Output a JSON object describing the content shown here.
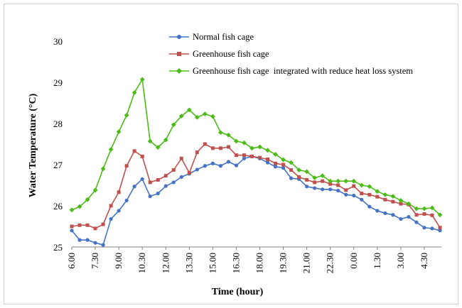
{
  "chart_data": {
    "type": "line",
    "title": "",
    "xlabel": "Time (hour)",
    "ylabel": "Water Temperature (°C)",
    "ylim": [
      25,
      30
    ],
    "yticks": [
      "25",
      "26",
      "27",
      "28",
      "29",
      "30"
    ],
    "x_tick_labels": [
      "6.00",
      "7.30",
      "9.00",
      "10.30",
      "12.00",
      "13.30",
      "15.00",
      "16.30",
      "18.00",
      "19.30",
      "21.00",
      "22.30",
      "0.00",
      "1.30",
      "3.00",
      "4.30"
    ],
    "x": [
      "6.00",
      "6.30",
      "7.00",
      "7.30",
      "8.00",
      "8.30",
      "9.00",
      "9.30",
      "10.00",
      "10.30",
      "11.00",
      "11.30",
      "12.00",
      "12.30",
      "13.00",
      "13.30",
      "14.00",
      "14.30",
      "15.00",
      "15.30",
      "16.00",
      "16.30",
      "17.00",
      "17.30",
      "18.00",
      "18.30",
      "19.00",
      "19.30",
      "20.00",
      "20.30",
      "21.00",
      "21.30",
      "22.00",
      "22.30",
      "23.00",
      "23.30",
      "0.00",
      "0.30",
      "1.00",
      "1.30",
      "2.00",
      "2.30",
      "3.00",
      "3.30",
      "4.00",
      "4.30",
      "5.00",
      "5.30"
    ],
    "legend_position": "top-center",
    "grid": false,
    "series": [
      {
        "name": "Normal fish cage",
        "color": "#4472C4",
        "marker": "circle",
        "values": [
          25.4,
          25.17,
          25.17,
          25.1,
          25.05,
          25.68,
          25.88,
          26.13,
          26.47,
          26.65,
          26.23,
          26.3,
          26.48,
          26.57,
          26.7,
          26.78,
          26.88,
          26.97,
          27.03,
          26.97,
          27.07,
          26.98,
          27.15,
          27.2,
          27.15,
          27.05,
          26.95,
          26.92,
          26.67,
          26.65,
          26.47,
          26.43,
          26.4,
          26.4,
          26.37,
          26.27,
          26.25,
          26.15,
          25.98,
          25.88,
          25.82,
          25.78,
          25.68,
          25.73,
          25.6,
          25.47,
          25.45,
          25.4
        ]
      },
      {
        "name": "Greenhouse fish cage",
        "color": "#C0504D",
        "marker": "square",
        "values": [
          25.5,
          25.53,
          25.53,
          25.45,
          25.55,
          26.0,
          26.33,
          26.97,
          27.33,
          27.2,
          26.57,
          26.63,
          26.73,
          26.87,
          27.15,
          26.8,
          27.3,
          27.5,
          27.4,
          27.4,
          27.43,
          27.23,
          27.23,
          27.2,
          27.17,
          27.13,
          27.03,
          27.0,
          26.87,
          26.7,
          26.63,
          26.57,
          26.6,
          26.53,
          26.5,
          26.38,
          26.48,
          26.3,
          26.27,
          26.22,
          26.15,
          26.1,
          26.05,
          26.03,
          25.78,
          25.8,
          25.77,
          25.47
        ]
      },
      {
        "name": "Greenhouse fish cage  integrated with reduce heat loss system",
        "color": "#4CBB17",
        "marker": "diamond",
        "values": [
          25.9,
          25.98,
          26.15,
          26.38,
          26.9,
          27.37,
          27.8,
          28.2,
          28.75,
          29.07,
          27.57,
          27.42,
          27.6,
          27.97,
          28.18,
          28.33,
          28.15,
          28.23,
          28.17,
          27.78,
          27.72,
          27.57,
          27.53,
          27.4,
          27.43,
          27.35,
          27.25,
          27.12,
          27.05,
          26.87,
          26.83,
          26.68,
          26.73,
          26.6,
          26.6,
          26.6,
          26.6,
          26.5,
          26.47,
          26.35,
          26.27,
          26.23,
          26.13,
          26.05,
          25.93,
          25.93,
          25.95,
          25.78
        ]
      }
    ]
  }
}
